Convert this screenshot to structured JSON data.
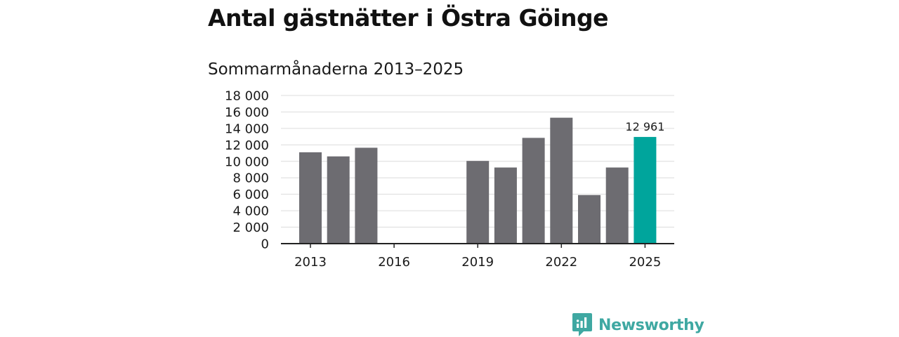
{
  "title": "Antal gästnätter i Östra Göinge",
  "subtitle": "Sommarmånaderna 2013–2025",
  "brand": {
    "name": "Newsworthy",
    "icon": "newsworthy-logo-icon",
    "color": "#3fa8a2"
  },
  "chart_data": {
    "type": "bar",
    "x": [
      2013,
      2014,
      2015,
      2016,
      2017,
      2018,
      2019,
      2020,
      2021,
      2022,
      2023,
      2024,
      2025
    ],
    "values": [
      11100,
      10600,
      11650,
      null,
      null,
      null,
      10050,
      9250,
      12850,
      15300,
      5900,
      9250,
      12961
    ],
    "x_ticks": [
      "2013",
      "2016",
      "2019",
      "2022",
      "2025"
    ],
    "y_ticks": [
      "0",
      "2 000",
      "4 000",
      "6 000",
      "8 000",
      "10 000",
      "12 000",
      "14 000",
      "16 000",
      "18 000"
    ],
    "ylim": [
      0,
      18000
    ],
    "highlight": {
      "year": 2025,
      "label": "12 961",
      "color": "#00a59c"
    },
    "bar_color": "#6d6c71",
    "grid": true,
    "legend": "none"
  }
}
